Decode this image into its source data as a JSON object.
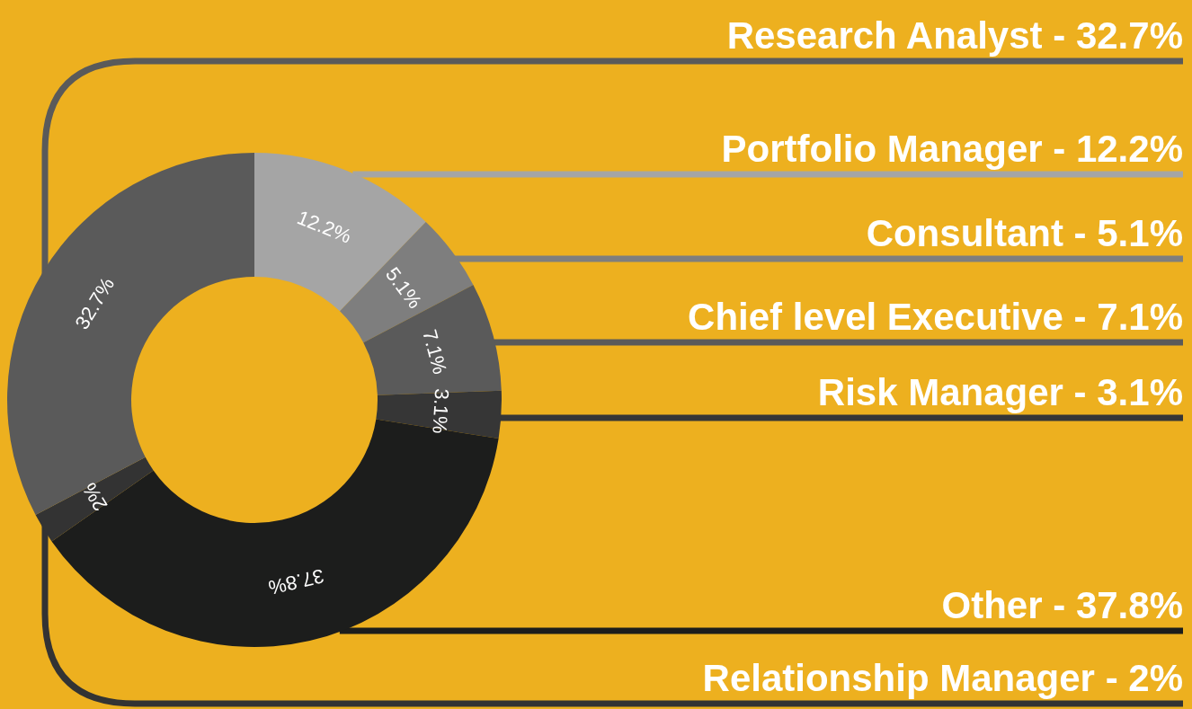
{
  "chart_data": {
    "type": "donut",
    "categories": [
      "Portfolio Manager",
      "Consultant",
      "Chief level Executive",
      "Risk Manager",
      "Other",
      "Relationship Manager",
      "Research Analyst"
    ],
    "values": [
      12.2,
      5.1,
      7.1,
      3.1,
      37.8,
      2,
      32.7
    ],
    "colors": [
      "#a5a5a5",
      "#7e7e7e",
      "#5a5a5a",
      "#363636",
      "#1c1d1c",
      "#333333",
      "#5a5a5a"
    ],
    "value_labels": [
      "12.2%",
      "5.1%",
      "7.1%",
      "3.1%",
      "37.8%",
      "2%",
      "32.7%"
    ]
  }
}
